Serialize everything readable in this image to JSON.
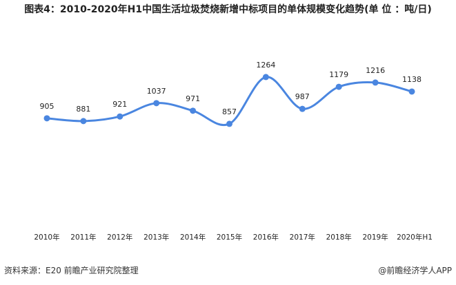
{
  "chart_data": {
    "type": "line",
    "title": "图表4：2010-2020年H1中国生活垃圾焚烧新增中标项目的单体规模变化趋势(单 位 ：吨/日)",
    "categories": [
      "2010年",
      "2011年",
      "2012年",
      "2013年",
      "2014年",
      "2015年",
      "2016年",
      "2017年",
      "2018年",
      "2019年",
      "2020年H1"
    ],
    "values": [
      905,
      881,
      921,
      1037,
      971,
      857,
      1264,
      987,
      1179,
      1216,
      1138
    ],
    "ylim": [
      0,
      1400
    ],
    "smooth": true,
    "grid": false,
    "line_color": "#4a86e0",
    "xlabel": "",
    "ylabel": ""
  },
  "footer": {
    "source": "资料来源：E20  前瞻产业研究院整理",
    "credit": "@前瞻经济学人APP"
  }
}
